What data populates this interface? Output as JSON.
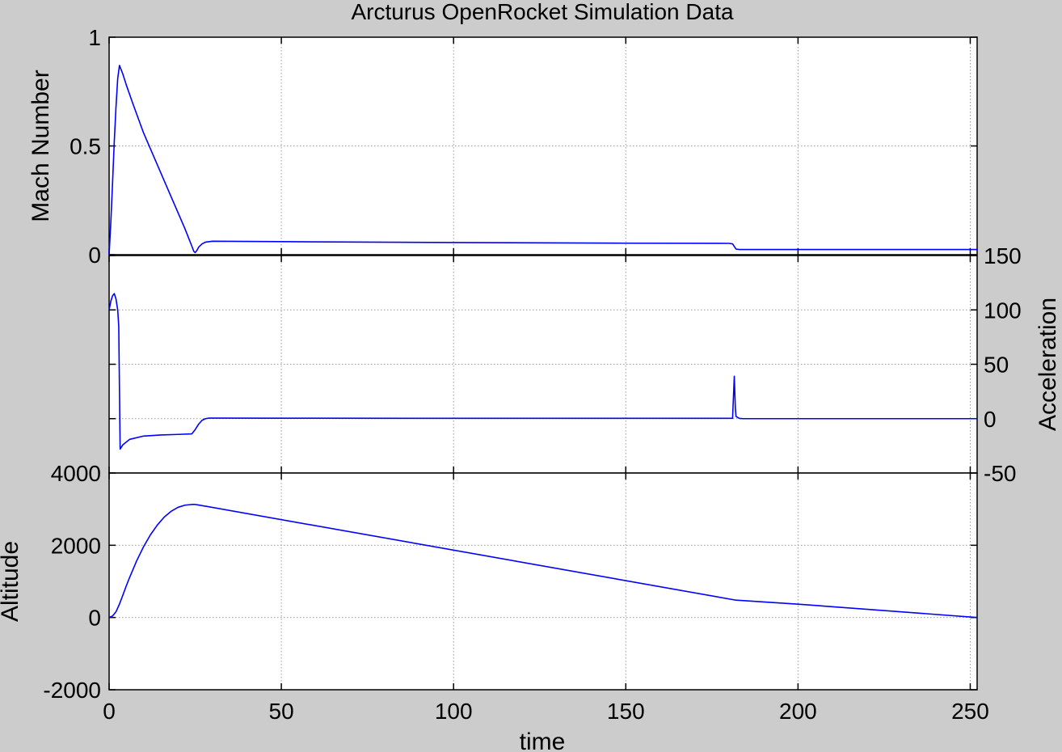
{
  "chart_data": {
    "type": "line",
    "title": "Arcturus OpenRocket Simulation Data",
    "xlabel": "time",
    "xlim": [
      0,
      252
    ],
    "xticks": [
      0,
      50,
      100,
      150,
      200,
      250
    ],
    "xtick_labels": [
      "0",
      "50",
      "100",
      "150",
      "200",
      "250"
    ],
    "grid": true,
    "line_color": "#0000ff",
    "background_color": "#cccccc",
    "plot_background_color": "#ffffff",
    "panels": [
      {
        "id": "mach",
        "ylabel": "Mach Number",
        "ylabel_side": "left",
        "ylim": [
          0,
          1
        ],
        "yticks": [
          0,
          0.5,
          1
        ],
        "ytick_labels": [
          "0",
          "0.5",
          "1"
        ],
        "series": [
          {
            "x": [
              0,
              0.5,
              1,
              1.5,
              2,
              2.5,
              3,
              4,
              5,
              7,
              10,
              13,
              16,
              19,
              22,
              23,
              24,
              24.6,
              25,
              25.5,
              26,
              27,
              28,
              30,
              50,
              100,
              150,
              180,
              181,
              182,
              183,
              200,
              252
            ],
            "y": [
              0,
              0.15,
              0.33,
              0.52,
              0.68,
              0.81,
              0.87,
              0.83,
              0.78,
              0.69,
              0.56,
              0.45,
              0.34,
              0.23,
              0.12,
              0.08,
              0.04,
              0.015,
              0.01,
              0.02,
              0.035,
              0.05,
              0.058,
              0.062,
              0.06,
              0.056,
              0.053,
              0.052,
              0.05,
              0.026,
              0.024,
              0.024,
              0.024
            ]
          }
        ]
      },
      {
        "id": "acceleration",
        "ylabel": "Acceleration",
        "ylabel_side": "right",
        "ylim": [
          -50,
          150
        ],
        "yticks": [
          -50,
          0,
          50,
          100,
          150
        ],
        "ytick_labels": [
          "-50",
          "0",
          "50",
          "100",
          "150"
        ],
        "series": [
          {
            "x": [
              0,
              0.5,
              1,
              1.5,
              2,
              2.5,
              2.8,
              3.2,
              4,
              6,
              10,
              15,
              20,
              24,
              25,
              26,
              27,
              28,
              29,
              30,
              50,
              100,
              150,
              181,
              181.5,
              181.8,
              182,
              183,
              184,
              200,
              252
            ],
            "y": [
              100,
              108,
              113,
              115,
              110,
              100,
              85,
              -28,
              -24,
              -19,
              -16,
              -15,
              -14.5,
              -14,
              -10,
              -5,
              -1.5,
              0,
              0.5,
              0.5,
              0.4,
              0.3,
              0.3,
              0.3,
              39,
              10,
              2,
              0.2,
              0,
              0,
              0
            ]
          }
        ]
      },
      {
        "id": "altitude",
        "ylabel": "Altitude",
        "ylabel_side": "left",
        "ylim": [
          -2000,
          4000
        ],
        "yticks": [
          -2000,
          0,
          2000,
          4000
        ],
        "ytick_labels": [
          "-2000",
          "0",
          "2000",
          "4000"
        ],
        "series": [
          {
            "x": [
              0,
              1,
              2,
              3,
              4,
              5,
              6,
              8,
              10,
              12,
              14,
              16,
              18,
              20,
              22,
              24,
              25,
              26,
              182,
              200,
              252
            ],
            "y": [
              0,
              40,
              160,
              370,
              620,
              880,
              1120,
              1570,
              1960,
              2290,
              2560,
              2780,
              2940,
              3050,
              3110,
              3130,
              3130,
              3115,
              480,
              370,
              0
            ]
          }
        ]
      }
    ]
  }
}
